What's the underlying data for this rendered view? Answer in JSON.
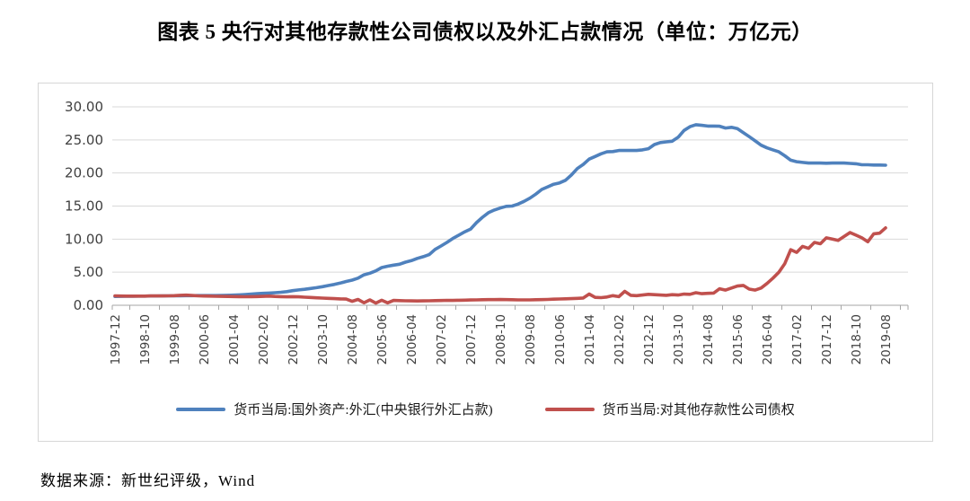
{
  "title": "图表 5  央行对其他存款性公司债权以及外汇占款情况（单位：万亿元）",
  "source": "数据来源：新世纪评级，Wind",
  "colors": {
    "series_fx_blue": "#4F81BD",
    "series_claims_red": "#C0504D",
    "gridline": "#D9D9D9",
    "axis_line": "#A6A6A6",
    "tick_text": "#404040",
    "chart_border": "#D6D6D6"
  },
  "chart_data": {
    "type": "line",
    "title": "央行对其他存款性公司债权以及外汇占款情况",
    "unit": "万亿元",
    "grid": true,
    "legend_position": "bottom",
    "ylim": [
      0,
      30
    ],
    "y_tick_labels": [
      "0.00",
      "5.00",
      "10.00",
      "15.00",
      "20.00",
      "25.00",
      "30.00"
    ],
    "x_tick_labels": [
      "1997-12",
      "1998-10",
      "1999-08",
      "2000-06",
      "2001-04",
      "2002-02",
      "2002-12",
      "2003-10",
      "2004-08",
      "2005-06",
      "2006-04",
      "2007-02",
      "2007-12",
      "2008-10",
      "2009-08",
      "2010-06",
      "2011-04",
      "2012-02",
      "2012-12",
      "2013-10",
      "2014-08",
      "2015-06",
      "2016-04",
      "2017-02",
      "2017-12",
      "2018-10",
      "2019-08"
    ],
    "x_start": "1997-12",
    "x_end": "2019-08",
    "months_per_sample": 2,
    "months_per_x_tick": 10,
    "series": [
      {
        "name": "货币当局:国外资产:外汇(中央银行外汇占款)",
        "color": "#4F81BD",
        "values": [
          1.33,
          1.35,
          1.36,
          1.37,
          1.38,
          1.39,
          1.4,
          1.4,
          1.41,
          1.42,
          1.43,
          1.44,
          1.45,
          1.45,
          1.46,
          1.46,
          1.47,
          1.47,
          1.48,
          1.5,
          1.54,
          1.58,
          1.63,
          1.7,
          1.77,
          1.8,
          1.84,
          1.9,
          1.97,
          2.07,
          2.21,
          2.32,
          2.42,
          2.54,
          2.66,
          2.81,
          2.98,
          3.15,
          3.35,
          3.6,
          3.8,
          4.1,
          4.6,
          4.85,
          5.2,
          5.7,
          5.9,
          6.07,
          6.21,
          6.52,
          6.75,
          7.09,
          7.35,
          7.66,
          8.44,
          8.96,
          9.5,
          10.1,
          10.6,
          11.1,
          11.52,
          12.5,
          13.3,
          14.0,
          14.4,
          14.7,
          14.96,
          15.0,
          15.3,
          15.7,
          16.2,
          16.8,
          17.51,
          17.9,
          18.3,
          18.5,
          18.9,
          19.7,
          20.68,
          21.3,
          22.1,
          22.5,
          22.9,
          23.2,
          23.24,
          23.4,
          23.4,
          23.4,
          23.4,
          23.5,
          23.67,
          24.3,
          24.6,
          24.7,
          24.8,
          25.4,
          26.43,
          27.0,
          27.3,
          27.2,
          27.1,
          27.1,
          27.07,
          26.8,
          26.9,
          26.7,
          26.1,
          25.5,
          24.85,
          24.2,
          23.8,
          23.5,
          23.2,
          22.6,
          21.94,
          21.7,
          21.6,
          21.5,
          21.5,
          21.5,
          21.48,
          21.5,
          21.5,
          21.5,
          21.45,
          21.4,
          21.25,
          21.25,
          21.2,
          21.2,
          21.18
        ]
      },
      {
        "name": "货币当局:对其他存款性公司债权",
        "color": "#C0504D",
        "values": [
          1.42,
          1.4,
          1.39,
          1.38,
          1.38,
          1.39,
          1.41,
          1.42,
          1.41,
          1.43,
          1.45,
          1.5,
          1.53,
          1.48,
          1.42,
          1.4,
          1.38,
          1.36,
          1.35,
          1.33,
          1.31,
          1.3,
          1.29,
          1.3,
          1.31,
          1.35,
          1.38,
          1.33,
          1.3,
          1.28,
          1.3,
          1.28,
          1.22,
          1.18,
          1.12,
          1.08,
          1.05,
          1.0,
          0.97,
          0.94,
          0.6,
          0.88,
          0.38,
          0.82,
          0.32,
          0.76,
          0.36,
          0.73,
          0.7,
          0.68,
          0.66,
          0.65,
          0.66,
          0.68,
          0.7,
          0.72,
          0.74,
          0.73,
          0.76,
          0.78,
          0.8,
          0.82,
          0.84,
          0.86,
          0.85,
          0.87,
          0.86,
          0.84,
          0.82,
          0.81,
          0.82,
          0.84,
          0.86,
          0.88,
          0.92,
          0.95,
          0.98,
          1.0,
          1.05,
          1.1,
          1.7,
          1.2,
          1.15,
          1.25,
          1.45,
          1.3,
          2.1,
          1.5,
          1.45,
          1.55,
          1.65,
          1.6,
          1.55,
          1.5,
          1.6,
          1.55,
          1.7,
          1.65,
          1.9,
          1.75,
          1.8,
          1.85,
          2.5,
          2.3,
          2.6,
          2.9,
          3.0,
          2.45,
          2.3,
          2.6,
          3.3,
          4.1,
          5.0,
          6.3,
          8.4,
          8.0,
          8.9,
          8.6,
          9.5,
          9.3,
          10.2,
          10.0,
          9.8,
          10.4,
          11.0,
          10.6,
          10.2,
          9.6,
          10.8,
          10.9,
          11.7
        ]
      }
    ]
  }
}
